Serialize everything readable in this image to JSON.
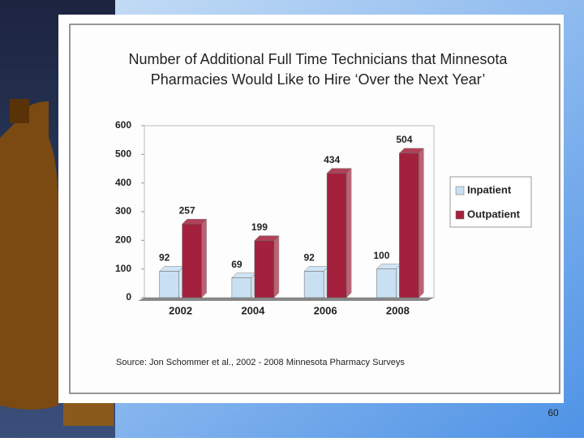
{
  "chart_data": {
    "type": "bar",
    "title": [
      "Number of Additional Full Time Technicians that Minnesota",
      "Pharmacies Would Like to Hire ‘Over the Next Year’"
    ],
    "categories": [
      "2002",
      "2004",
      "2006",
      "2008"
    ],
    "series": [
      {
        "name": "Inpatient",
        "color": "#c9e0f2",
        "values": [
          92,
          69,
          92,
          100
        ]
      },
      {
        "name": "Outpatient",
        "color": "#a3213d",
        "values": [
          257,
          199,
          434,
          504
        ]
      }
    ],
    "ylim": [
      0,
      600
    ],
    "yticks": [
      0,
      100,
      200,
      300,
      400,
      500,
      600
    ],
    "grid": false,
    "legend": "right",
    "source": "Source: Jon Schommer et al., 2002 - 2008 Minnesota Pharmacy Surveys"
  },
  "page_number": "60"
}
